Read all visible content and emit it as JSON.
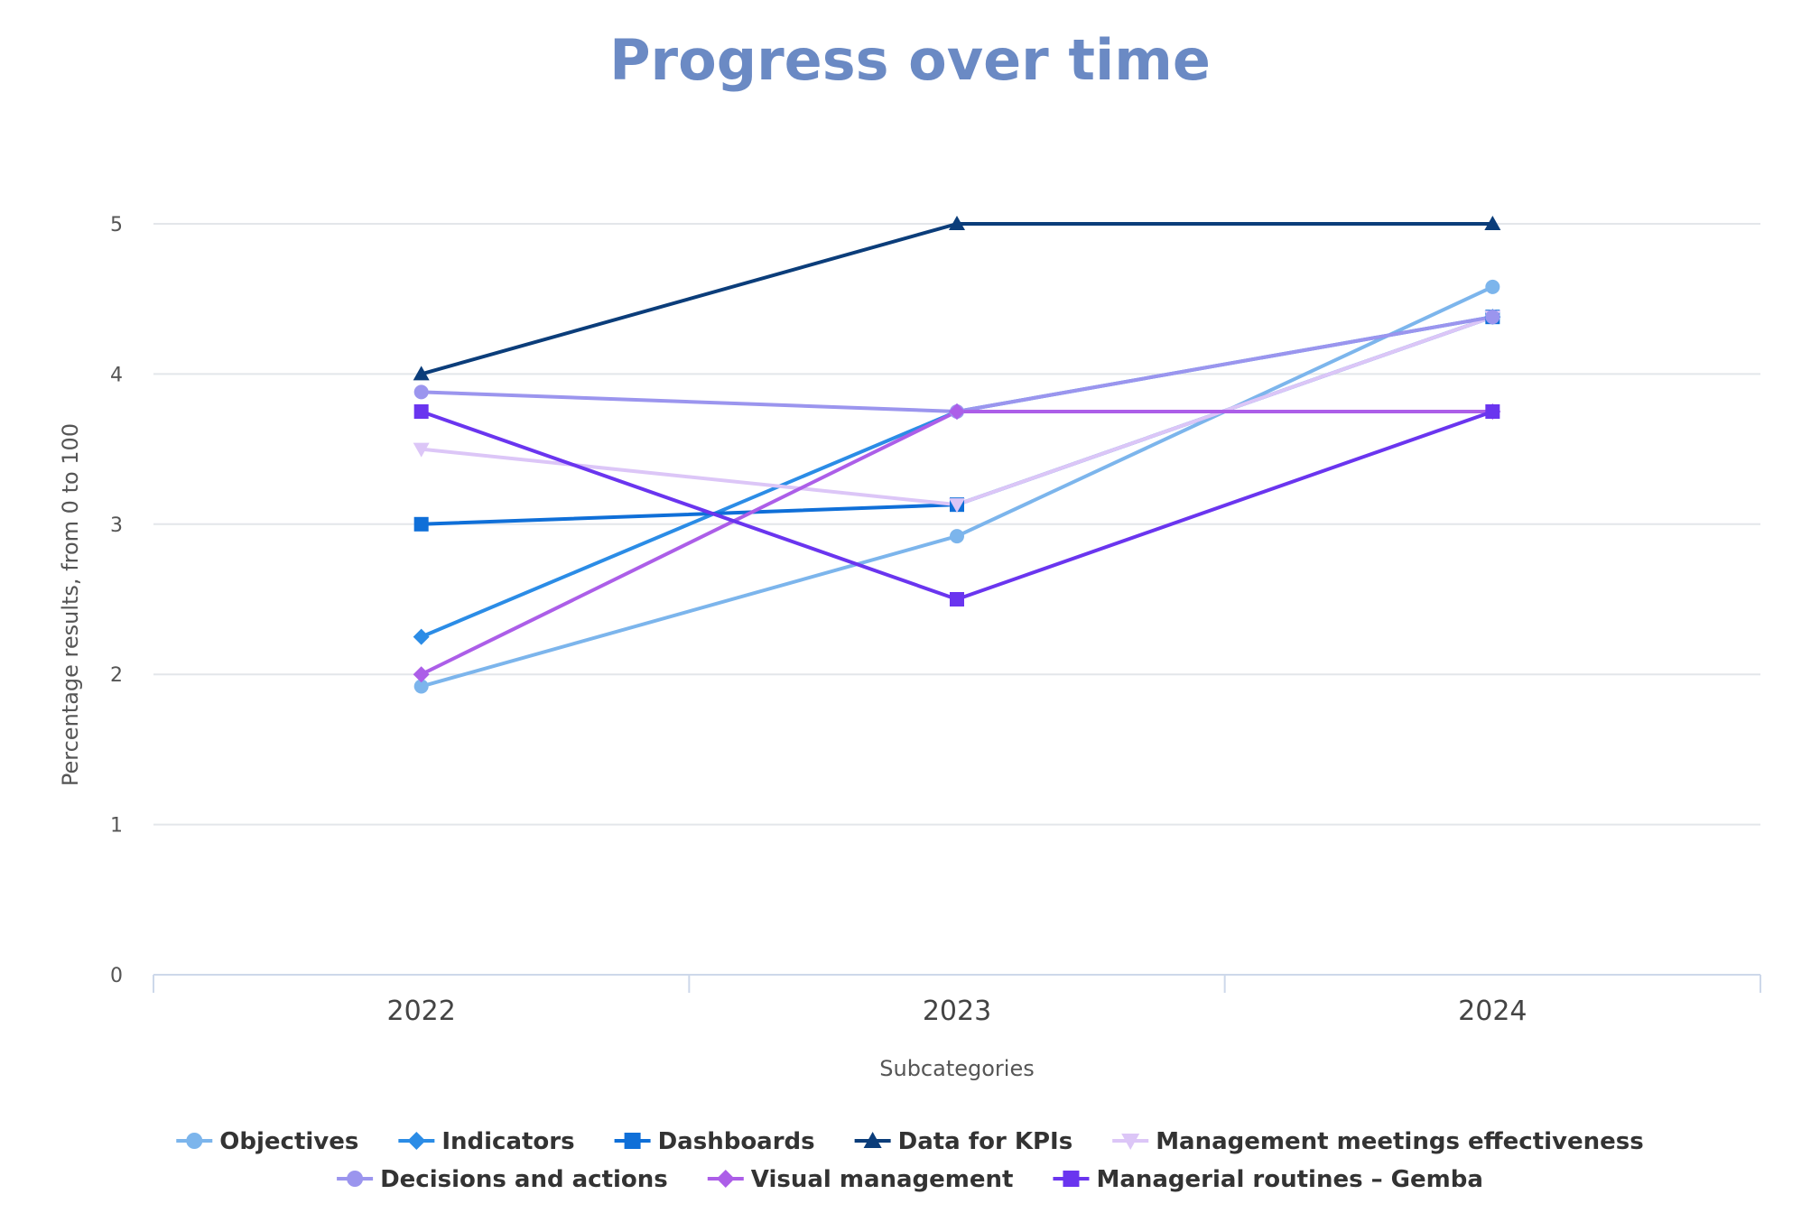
{
  "chart_data": {
    "type": "line",
    "title": "Progress over time",
    "xlabel": "Subcategories",
    "ylabel": "Percentage results, from 0 to 100",
    "categories": [
      "2022",
      "2023",
      "2024"
    ],
    "ylim": [
      0,
      5
    ],
    "yticks": [
      0,
      1,
      2,
      3,
      4,
      5
    ],
    "grid": true,
    "legend_position": "bottom",
    "series": [
      {
        "name": "Objectives",
        "values": [
          1.92,
          2.92,
          4.58
        ],
        "color": "#7cb5ec",
        "marker": "circle"
      },
      {
        "name": "Indicators",
        "values": [
          2.25,
          3.75,
          4.38
        ],
        "color": "#2b8ce6",
        "marker": "diamond"
      },
      {
        "name": "Dashboards",
        "values": [
          3.0,
          3.13,
          4.38
        ],
        "color": "#0f6fd8",
        "marker": "square"
      },
      {
        "name": "Data for KPIs",
        "values": [
          4.0,
          5.0,
          5.0
        ],
        "color": "#0b3d7a",
        "marker": "triangle"
      },
      {
        "name": "Management meetings effectiveness",
        "values": [
          3.5,
          3.13,
          4.38
        ],
        "color": "#dcc6f7",
        "marker": "triangle-down"
      },
      {
        "name": "Decisions and actions",
        "values": [
          3.88,
          3.75,
          4.38
        ],
        "color": "#9b95ee",
        "marker": "circle"
      },
      {
        "name": "Visual management",
        "values": [
          2.0,
          3.75,
          3.75
        ],
        "color": "#ac5ee8",
        "marker": "diamond"
      },
      {
        "name": "Managerial routines – Gemba",
        "values": [
          3.75,
          2.5,
          3.75
        ],
        "color": "#6a35ef",
        "marker": "square"
      }
    ]
  }
}
